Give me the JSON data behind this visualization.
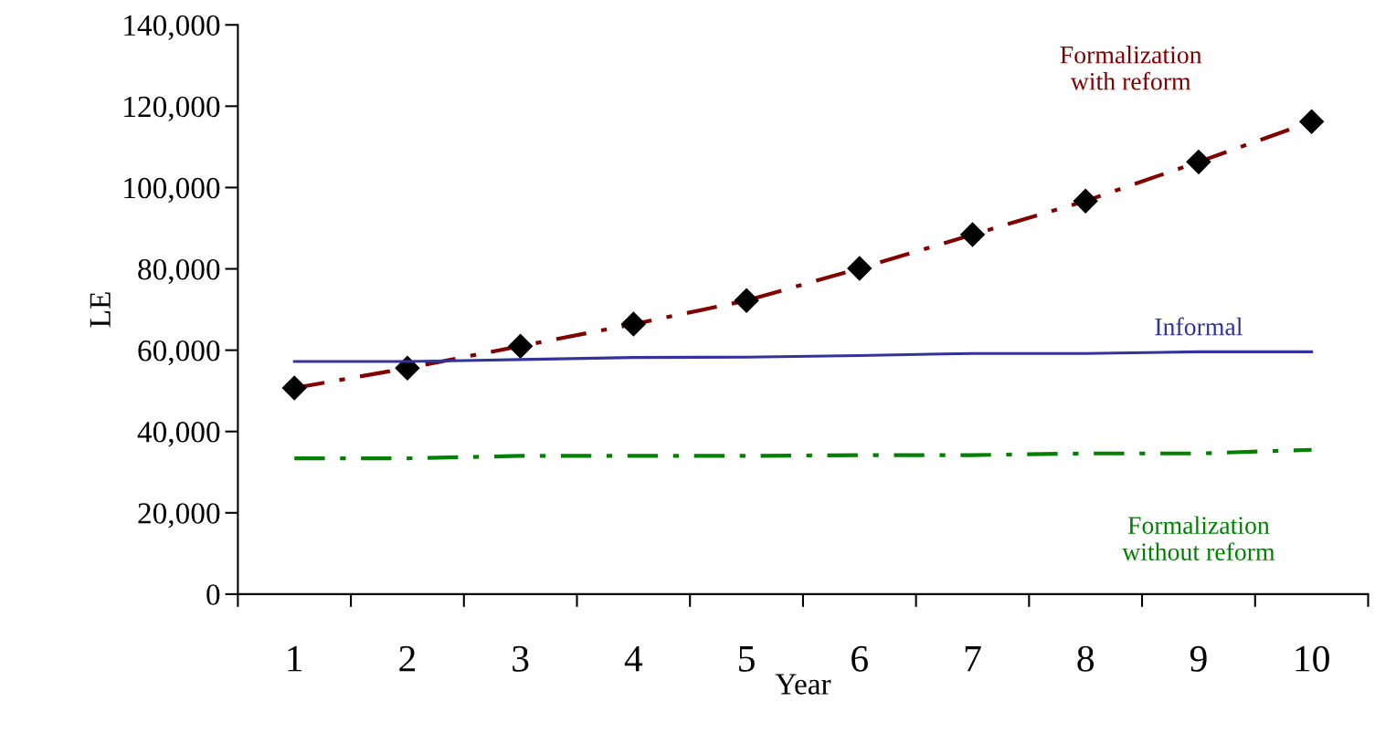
{
  "chart_data": {
    "type": "line",
    "xlabel": "Year",
    "ylabel": "LE",
    "categories": [
      "1",
      "2",
      "3",
      "4",
      "5",
      "6",
      "7",
      "8",
      "9",
      "10"
    ],
    "series": [
      {
        "name": "Formalization with reform",
        "color": "#800000",
        "marker": "diamond",
        "line_style": "dashed",
        "values": [
          50700,
          55600,
          61000,
          66400,
          72200,
          80100,
          88400,
          96700,
          106300,
          116200
        ]
      },
      {
        "name": "Informal",
        "color": "#333399",
        "line_style": "solid",
        "values": [
          57200,
          57200,
          57700,
          58200,
          58300,
          58700,
          59200,
          59200,
          59600,
          59600
        ]
      },
      {
        "name": "Formalization without reform",
        "color": "#008000",
        "line_style": "dashed",
        "values": [
          33400,
          33400,
          34000,
          34000,
          34000,
          34200,
          34200,
          34600,
          34600,
          35500
        ]
      }
    ],
    "ylim": [
      0,
      140000
    ],
    "yticks": [
      {
        "value": 0,
        "label": "0"
      },
      {
        "value": 20000,
        "label": "20,000"
      },
      {
        "value": 40000,
        "label": "40,000"
      },
      {
        "value": 60000,
        "label": "60,000"
      },
      {
        "value": 80000,
        "label": "80,000"
      },
      {
        "value": 100000,
        "label": "100,000"
      },
      {
        "value": 120000,
        "label": "120,000"
      },
      {
        "value": 140000,
        "label": "140,000"
      }
    ],
    "grid": false,
    "legend": false
  }
}
